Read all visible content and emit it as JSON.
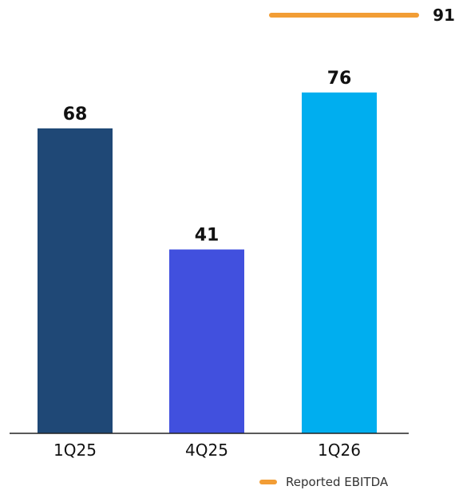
{
  "chart_data": {
    "type": "bar",
    "categories": [
      "1Q25",
      "4Q25",
      "1Q26"
    ],
    "values": [
      68,
      41,
      76
    ],
    "value_labels": [
      "68",
      "41",
      "76"
    ],
    "bar_colors": [
      "#1F4876",
      "#4150DE",
      "#00AEEF"
    ],
    "ylim": [
      0,
      100
    ],
    "grid": false,
    "reference_line": {
      "name": "Reported EBITDA",
      "value": 91,
      "value_label": "91",
      "color": "#F29D35"
    },
    "legend": {
      "placement": "bottom-right",
      "entries": [
        {
          "label": "Reported EBITDA",
          "color": "#F29D35"
        }
      ]
    }
  }
}
